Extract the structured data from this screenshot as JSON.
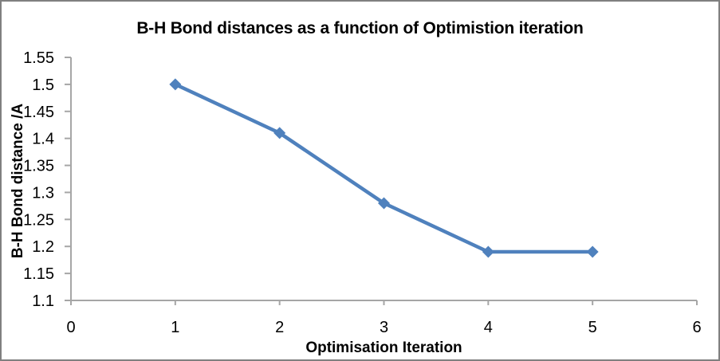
{
  "chart_data": {
    "type": "line",
    "title": "B-H Bond distances as a function of Optimistion iteration",
    "xlabel": "Optimisation Iteration",
    "ylabel": "B-H Bond distance /A",
    "x": [
      1,
      2,
      3,
      4,
      5
    ],
    "values": [
      1.5,
      1.41,
      1.28,
      1.19,
      1.19
    ],
    "xlim": [
      0,
      6
    ],
    "ylim": [
      1.1,
      1.55
    ],
    "x_tick_values": [
      0,
      1,
      2,
      3,
      4,
      5,
      6
    ],
    "x_tick_labels": [
      "0",
      "1",
      "2",
      "3",
      "4",
      "5",
      "6"
    ],
    "y_tick_values": [
      1.1,
      1.15,
      1.2,
      1.25,
      1.3,
      1.35,
      1.4,
      1.45,
      1.5,
      1.55
    ],
    "y_tick_labels": [
      "1.1",
      "1.15",
      "1.2",
      "1.25",
      "1.3",
      "1.35",
      "1.4",
      "1.45",
      "1.5",
      "1.55"
    ],
    "grid": false,
    "legend": null,
    "marker": "diamond",
    "series_color": "#4F81BD"
  },
  "colors": {
    "series_blue": "#4F81BD",
    "axis_gray": "#A6A6A6",
    "frame_gray": "#808080",
    "text_black": "#000000",
    "background": "#FFFFFF"
  }
}
